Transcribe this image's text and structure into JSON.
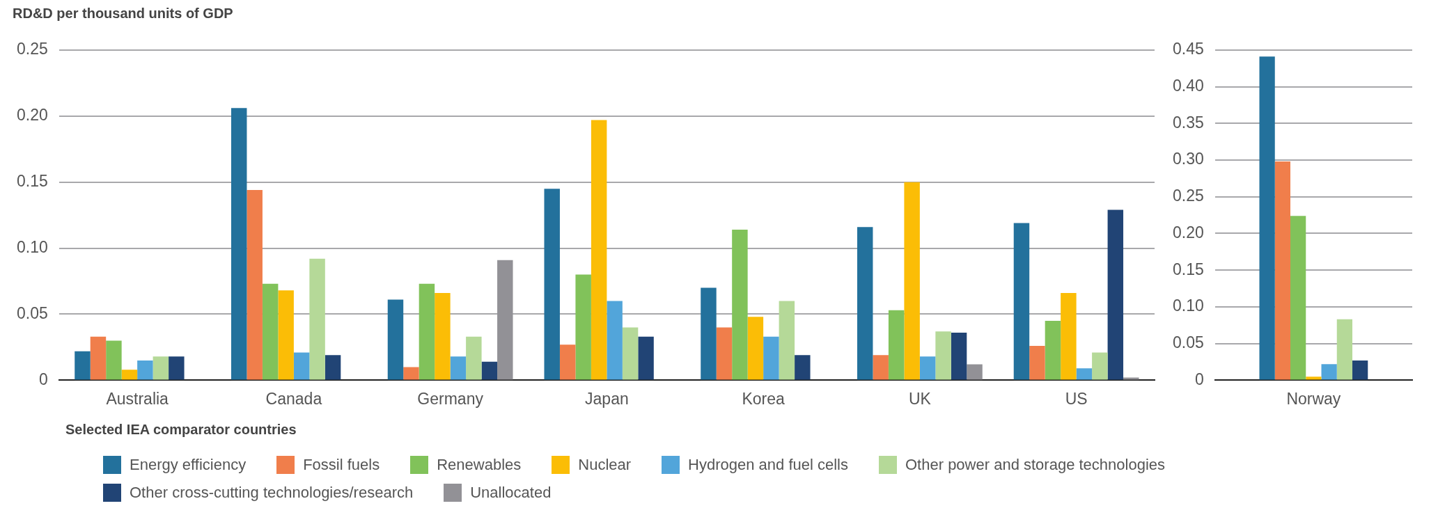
{
  "chart_data": [
    {
      "type": "bar",
      "ylabel": "RD&D per thousand units of GDP",
      "xlabel": "Selected IEA comparator countries",
      "categories": [
        "Australia",
        "Canada",
        "Germany",
        "Japan",
        "Korea",
        "UK",
        "US"
      ],
      "ylim": [
        0,
        0.25
      ],
      "yticks": [
        {
          "value": 0,
          "label": "0"
        },
        {
          "value": 0.05,
          "label": "0.05"
        },
        {
          "value": 0.1,
          "label": "0.10"
        },
        {
          "value": 0.15,
          "label": "0.15"
        },
        {
          "value": 0.2,
          "label": "0.20"
        },
        {
          "value": 0.25,
          "label": "0.25"
        }
      ],
      "grid": "y",
      "legend": "bottom",
      "series": [
        {
          "name": "Energy efficiency",
          "color": "#23719c",
          "values": [
            0.022,
            0.206,
            0.061,
            0.145,
            0.07,
            0.116,
            0.119
          ]
        },
        {
          "name": "Fossil fuels",
          "color": "#f07e4b",
          "values": [
            0.033,
            0.144,
            0.01,
            0.027,
            0.04,
            0.019,
            0.026
          ]
        },
        {
          "name": "Renewables",
          "color": "#81c25a",
          "values": [
            0.03,
            0.073,
            0.073,
            0.08,
            0.114,
            0.053,
            0.045
          ]
        },
        {
          "name": "Nuclear",
          "color": "#fbbd06",
          "values": [
            0.008,
            0.068,
            0.066,
            0.197,
            0.048,
            0.15,
            0.066
          ]
        },
        {
          "name": "Hydrogen and fuel cells",
          "color": "#52a5da",
          "values": [
            0.015,
            0.021,
            0.018,
            0.06,
            0.033,
            0.018,
            0.009
          ]
        },
        {
          "name": "Other power and storage technologies",
          "color": "#b5d998",
          "values": [
            0.018,
            0.092,
            0.033,
            0.04,
            0.06,
            0.037,
            0.021
          ]
        },
        {
          "name": "Other cross-cutting technologies/research",
          "color": "#214475",
          "values": [
            0.018,
            0.019,
            0.014,
            0.033,
            0.019,
            0.036,
            0.129
          ]
        },
        {
          "name": "Unallocated",
          "color": "#929196",
          "values": [
            null,
            null,
            0.091,
            null,
            null,
            0.012,
            0.002
          ]
        }
      ]
    },
    {
      "type": "bar",
      "categories": [
        "Norway"
      ],
      "ylim": [
        0,
        0.45
      ],
      "yticks": [
        {
          "value": 0,
          "label": "0"
        },
        {
          "value": 0.05,
          "label": "0.05"
        },
        {
          "value": 0.1,
          "label": "0.10"
        },
        {
          "value": 0.15,
          "label": "0.15"
        },
        {
          "value": 0.2,
          "label": "0.20"
        },
        {
          "value": 0.25,
          "label": "0.25"
        },
        {
          "value": 0.3,
          "label": "0.30"
        },
        {
          "value": 0.35,
          "label": "0.35"
        },
        {
          "value": 0.4,
          "label": "0.40"
        },
        {
          "value": 0.45,
          "label": "0.45"
        }
      ],
      "grid": "y",
      "series": [
        {
          "color": "#23719c",
          "values": [
            0.441
          ]
        },
        {
          "color": "#f07e4b",
          "values": [
            0.298
          ]
        },
        {
          "color": "#81c25a",
          "values": [
            0.224
          ]
        },
        {
          "color": "#fbbd06",
          "values": [
            0.005
          ]
        },
        {
          "color": "#52a5da",
          "values": [
            0.022
          ]
        },
        {
          "color": "#b5d998",
          "values": [
            0.083
          ]
        },
        {
          "color": "#214475",
          "values": [
            0.027
          ]
        }
      ]
    }
  ]
}
